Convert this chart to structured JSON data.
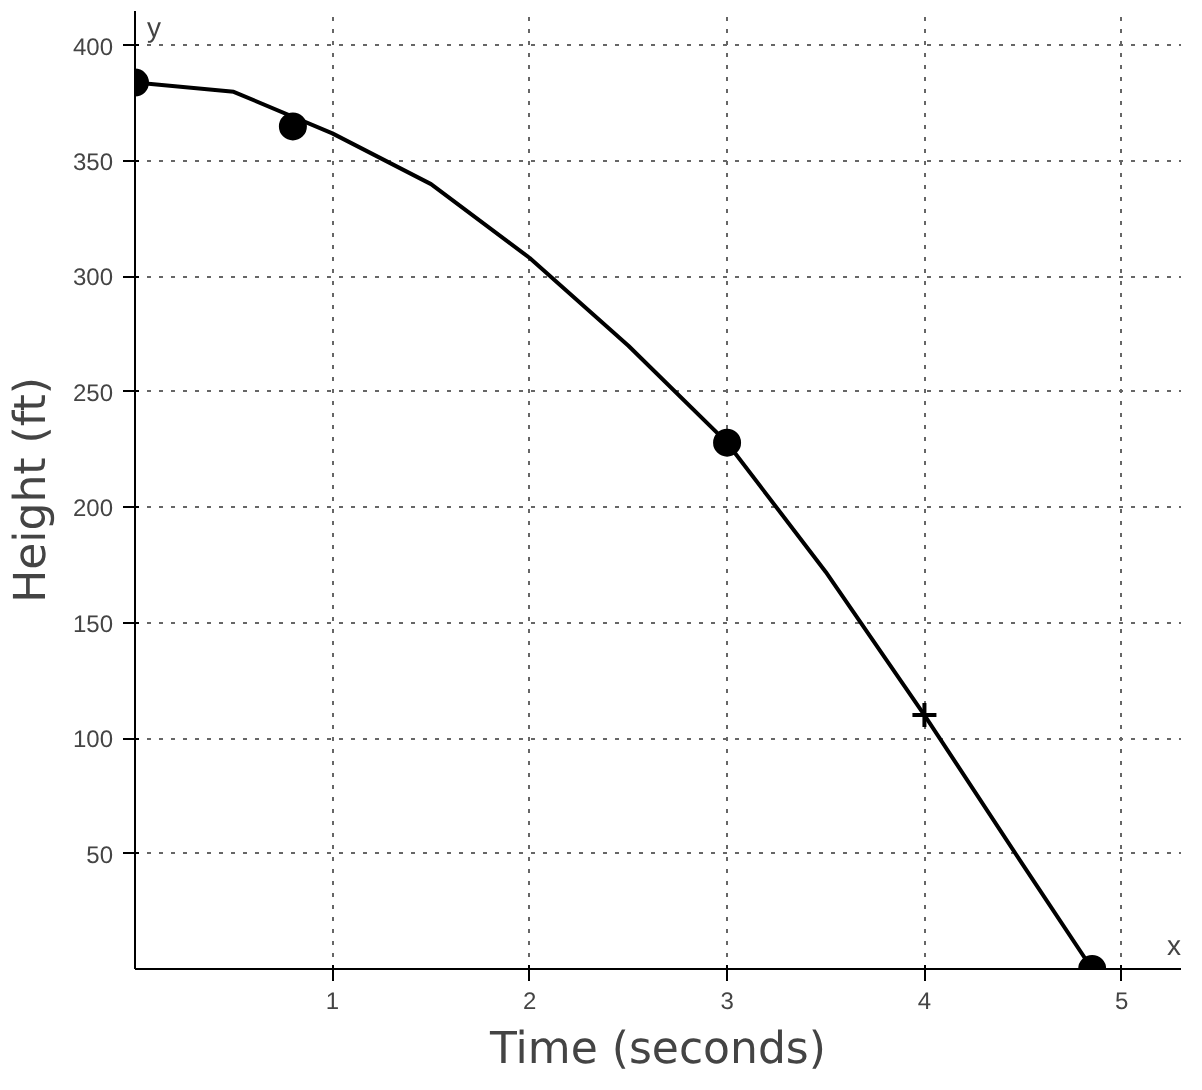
{
  "chart_data": {
    "type": "line",
    "xlabel": "Time (seconds)",
    "ylabel": "Height (ft)",
    "annotations": [
      "x",
      "y"
    ],
    "xlim": [
      0,
      5.3
    ],
    "ylim": [
      0,
      415
    ],
    "xticks": [
      1,
      2,
      3,
      4,
      5
    ],
    "yticks": [
      50,
      100,
      150,
      200,
      250,
      300,
      350,
      400
    ],
    "grid": true,
    "series": [
      {
        "color": "#000000",
        "marker": "none",
        "x": [
          0,
          0.5,
          1,
          1.5,
          2,
          2.5,
          3,
          3.5,
          4,
          4.5,
          4.85
        ],
        "values": [
          384,
          380,
          362,
          340,
          308,
          270,
          228,
          172,
          110,
          45,
          0
        ]
      },
      {
        "type": "scatter",
        "color": "#000000",
        "marker": "circle",
        "x": [
          0,
          0.8,
          3,
          4.85
        ],
        "values": [
          384,
          365,
          228,
          0
        ]
      },
      {
        "type": "scatter",
        "color": "#000000",
        "marker": "cross",
        "x": [
          4
        ],
        "values": [
          110
        ]
      }
    ]
  }
}
